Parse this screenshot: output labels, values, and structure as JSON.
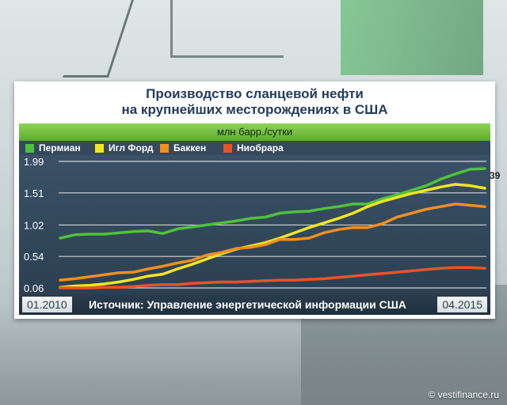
{
  "title_line1": "Производство сланцевой нефти",
  "title_line2": "на крупнейших месторождениях в США",
  "watermark": "© vestifinance.ru",
  "right_peek": "39",
  "chart_data": {
    "type": "line",
    "title": "Производство сланцевой нефти на крупнейших месторождениях в США",
    "units": "млн барр./сутки",
    "x_start_label": "01.2010",
    "x_end_label": "04.2015",
    "source": "Источник: Управление энергетической информации США",
    "ylim": [
      0.06,
      1.99
    ],
    "y_ticks": [
      "1.99",
      "1.51",
      "1.02",
      "0.54",
      "0.06"
    ],
    "grid": true,
    "legend_position": "top",
    "series": [
      {
        "name": "Пермиан",
        "color": "#4fc23a",
        "values": [
          0.82,
          0.87,
          0.88,
          0.88,
          0.9,
          0.92,
          0.93,
          0.89,
          0.96,
          0.99,
          1.02,
          1.05,
          1.08,
          1.12,
          1.14,
          1.2,
          1.22,
          1.23,
          1.27,
          1.3,
          1.34,
          1.34,
          1.42,
          1.48,
          1.55,
          1.62,
          1.72,
          1.8,
          1.87,
          1.88
        ]
      },
      {
        "name": "Игл Форд",
        "color": "#f3e61e",
        "values": [
          0.07,
          0.09,
          0.1,
          0.12,
          0.15,
          0.19,
          0.24,
          0.27,
          0.35,
          0.42,
          0.5,
          0.58,
          0.65,
          0.7,
          0.75,
          0.82,
          0.9,
          0.98,
          1.05,
          1.12,
          1.2,
          1.3,
          1.38,
          1.44,
          1.5,
          1.55,
          1.6,
          1.64,
          1.62,
          1.58
        ]
      },
      {
        "name": "Баккен",
        "color": "#f0901e",
        "values": [
          0.18,
          0.2,
          0.23,
          0.26,
          0.29,
          0.3,
          0.35,
          0.39,
          0.44,
          0.48,
          0.56,
          0.6,
          0.66,
          0.68,
          0.72,
          0.8,
          0.8,
          0.82,
          0.9,
          0.95,
          0.98,
          0.98,
          1.04,
          1.14,
          1.2,
          1.26,
          1.3,
          1.34,
          1.32,
          1.3
        ]
      },
      {
        "name": "Ниобрара",
        "color": "#e8532a",
        "values": [
          0.06,
          0.06,
          0.06,
          0.07,
          0.07,
          0.08,
          0.1,
          0.11,
          0.11,
          0.13,
          0.14,
          0.15,
          0.15,
          0.16,
          0.17,
          0.18,
          0.18,
          0.19,
          0.2,
          0.22,
          0.24,
          0.26,
          0.28,
          0.3,
          0.32,
          0.34,
          0.36,
          0.37,
          0.37,
          0.36
        ]
      }
    ]
  }
}
